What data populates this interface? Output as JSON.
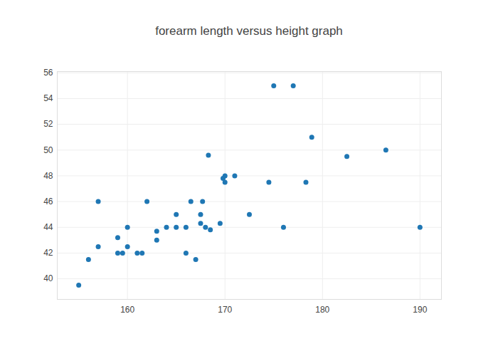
{
  "chart_data": {
    "type": "scatter",
    "title": "forearm length versus height graph",
    "x": [
      155.0,
      156.0,
      157.0,
      157.0,
      159.0,
      159.0,
      159.5,
      160.0,
      160.0,
      161.0,
      161.5,
      162.0,
      163.0,
      163.0,
      164.0,
      165.0,
      165.0,
      166.0,
      166.0,
      166.5,
      167.0,
      167.5,
      167.5,
      167.7,
      168.0,
      168.3,
      168.5,
      169.5,
      169.8,
      170.0,
      170.0,
      171.0,
      172.5,
      174.5,
      175.0,
      176.0,
      177.0,
      178.3,
      178.9,
      182.5,
      186.5,
      190.0
    ],
    "values": [
      39.5,
      41.5,
      42.5,
      46.0,
      43.2,
      42.0,
      42.0,
      44.0,
      42.5,
      42.0,
      42.0,
      46.0,
      43.7,
      43.0,
      44.0,
      45.0,
      44.0,
      42.0,
      44.0,
      46.0,
      41.5,
      45.0,
      44.3,
      46.0,
      44.0,
      49.6,
      43.8,
      44.3,
      47.8,
      48.0,
      47.5,
      48.0,
      45.0,
      47.5,
      55.0,
      44.0,
      55.0,
      47.5,
      51.0,
      49.5,
      50.0,
      44.0
    ],
    "color": "#1f77b4",
    "xlim": [
      152.8,
      192.2
    ],
    "ylim": [
      38.4,
      56.1
    ],
    "xticks": [
      160,
      170,
      180,
      190
    ],
    "yticks": [
      40,
      42,
      44,
      46,
      48,
      50,
      52,
      54,
      56
    ],
    "grid": true
  }
}
